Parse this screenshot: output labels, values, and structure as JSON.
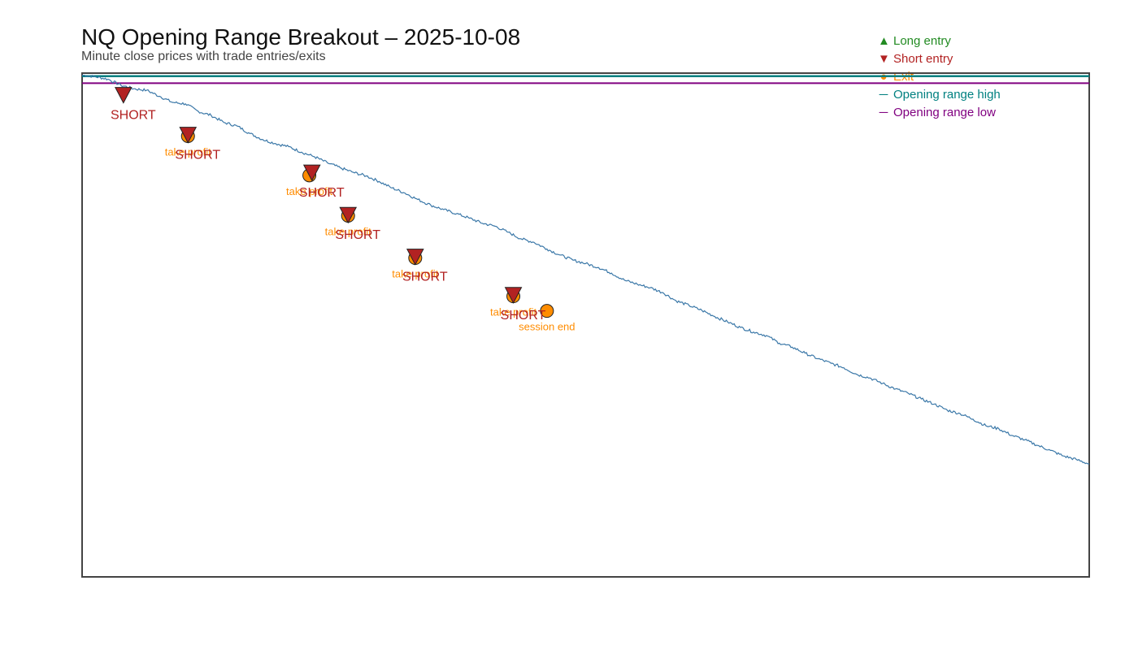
{
  "header": {
    "title": "NQ Opening Range Breakout – 2025-10-08",
    "subtitle": "Minute close prices with trade entries/exits"
  },
  "legend": [
    {
      "label": "Long entry",
      "symbol": "▲",
      "color": "#228B22"
    },
    {
      "label": "Short entry",
      "symbol": "▼",
      "color": "#B22222"
    },
    {
      "label": "Exit",
      "symbol": "●",
      "color": "#FF8C00"
    },
    {
      "label": "Opening range high",
      "symbol": "─",
      "color": "#008080"
    },
    {
      "label": "Opening range low",
      "symbol": "─",
      "color": "#800080"
    }
  ],
  "colors": {
    "price_line": "#3b78a8",
    "long": "#228B22",
    "short": "#B22222",
    "exit": "#FF8C00",
    "or_high": "#008080",
    "or_low": "#800080",
    "frame": "#444444"
  },
  "chart_data": {
    "type": "line",
    "title": "NQ Opening Range Breakout – 2025-10-08",
    "subtitle": "Minute close prices with trade entries/exits",
    "xlabel": "",
    "ylabel": "",
    "grid": false,
    "legend_position": "top-right",
    "x_range": [
      0,
      390
    ],
    "y_range": [
      0,
      100
    ],
    "opening_range": {
      "high": 99.4,
      "low": 98.0
    },
    "series": [
      {
        "values_xy": [
          [
            0,
            99.6
          ],
          [
            5,
            99.3
          ],
          [
            10,
            98.8
          ],
          [
            15,
            97.6
          ],
          [
            20,
            96.9
          ],
          [
            25,
            96.6
          ],
          [
            30,
            95.4
          ],
          [
            35,
            94.2
          ],
          [
            40,
            93.9
          ],
          [
            45,
            92.4
          ],
          [
            50,
            91.6
          ],
          [
            55,
            90.2
          ],
          [
            60,
            89.5
          ],
          [
            65,
            88.0
          ],
          [
            70,
            86.8
          ],
          [
            75,
            86.0
          ],
          [
            80,
            85.4
          ],
          [
            85,
            84.3
          ],
          [
            90,
            83.4
          ],
          [
            95,
            82.2
          ],
          [
            100,
            81.2
          ],
          [
            105,
            80.3
          ],
          [
            110,
            79.6
          ],
          [
            115,
            78.5
          ],
          [
            120,
            77.2
          ],
          [
            125,
            76.2
          ],
          [
            130,
            74.9
          ],
          [
            135,
            73.8
          ],
          [
            140,
            72.9
          ],
          [
            145,
            72.1
          ],
          [
            150,
            71.2
          ],
          [
            155,
            70.2
          ],
          [
            160,
            69.6
          ],
          [
            165,
            68.4
          ],
          [
            170,
            67.1
          ],
          [
            175,
            66.4
          ],
          [
            180,
            65.1
          ],
          [
            185,
            63.9
          ],
          [
            190,
            62.9
          ],
          [
            195,
            62.2
          ],
          [
            200,
            61.4
          ],
          [
            205,
            60.3
          ],
          [
            210,
            58.9
          ],
          [
            215,
            58.1
          ],
          [
            220,
            57.4
          ],
          [
            225,
            56.4
          ],
          [
            230,
            54.8
          ],
          [
            235,
            53.9
          ],
          [
            240,
            52.9
          ],
          [
            245,
            51.7
          ],
          [
            250,
            50.6
          ],
          [
            255,
            49.5
          ],
          [
            260,
            48.6
          ],
          [
            265,
            47.9
          ],
          [
            270,
            46.4
          ],
          [
            275,
            45.6
          ],
          [
            280,
            44.4
          ],
          [
            285,
            43.3
          ],
          [
            290,
            42.4
          ],
          [
            295,
            41.5
          ],
          [
            300,
            40.2
          ],
          [
            305,
            39.5
          ],
          [
            310,
            38.4
          ],
          [
            315,
            37.3
          ],
          [
            320,
            36.4
          ],
          [
            325,
            35.3
          ],
          [
            330,
            34.3
          ],
          [
            335,
            33.1
          ],
          [
            340,
            32.4
          ],
          [
            345,
            31.3
          ],
          [
            350,
            30.0
          ],
          [
            355,
            29.4
          ],
          [
            360,
            28.1
          ],
          [
            365,
            27.2
          ],
          [
            370,
            26.1
          ],
          [
            375,
            25.1
          ],
          [
            380,
            24.0
          ],
          [
            385,
            23.3
          ],
          [
            390,
            22.4
          ]
        ]
      }
    ],
    "entries": [
      {
        "x": 16,
        "y": 95.7,
        "side": "short",
        "label": "SHORT"
      },
      {
        "x": 41,
        "y": 87.8,
        "side": "short",
        "label": "SHORT"
      },
      {
        "x": 89,
        "y": 80.3,
        "side": "short",
        "label": "SHORT"
      },
      {
        "x": 103,
        "y": 71.9,
        "side": "short",
        "label": "SHORT"
      },
      {
        "x": 129,
        "y": 63.6,
        "side": "short",
        "label": "SHORT"
      },
      {
        "x": 167,
        "y": 56.0,
        "side": "short",
        "label": "SHORT"
      }
    ],
    "exits": [
      {
        "x": 41,
        "y": 87.5,
        "label": "take profit"
      },
      {
        "x": 88,
        "y": 79.7,
        "label": "take profit"
      },
      {
        "x": 103,
        "y": 71.7,
        "label": "take profit"
      },
      {
        "x": 129,
        "y": 63.3,
        "label": "take profit"
      },
      {
        "x": 167,
        "y": 55.7,
        "label": "take profit"
      },
      {
        "x": 180,
        "y": 52.8,
        "label": "session end"
      }
    ]
  }
}
